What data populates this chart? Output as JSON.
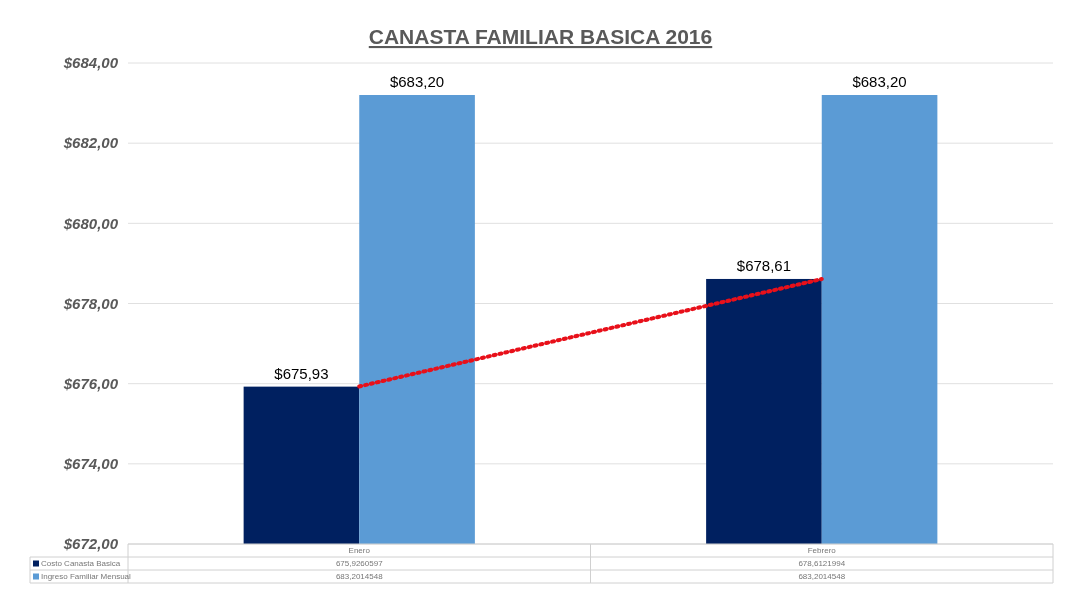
{
  "chart_data": {
    "type": "bar",
    "title": "CANASTA FAMILIAR BASICA 2016",
    "categories": [
      "Enero",
      "Febrero"
    ],
    "series": [
      {
        "name": "Costo Canasta Basica",
        "color": "#002060",
        "values": [
          675.9260597,
          678.6121994
        ],
        "value_labels": [
          "$675,93",
          "$678,61"
        ]
      },
      {
        "name": "Ingreso Familiar Mensual",
        "color": "#5b9bd5",
        "values": [
          683.2014548,
          683.2014548
        ],
        "value_labels": [
          "$683,20",
          "$683,20"
        ]
      },
      {
        "type": "line",
        "color": "#e8101a",
        "values": [
          675.93,
          678.61
        ],
        "line_style": "dotted"
      }
    ],
    "ylim": [
      672,
      684
    ],
    "yticks": [
      {
        "value": 672,
        "label": "$672,00"
      },
      {
        "value": 674,
        "label": "$674,00"
      },
      {
        "value": 676,
        "label": "$676,00"
      },
      {
        "value": 678,
        "label": "$678,00"
      },
      {
        "value": 680,
        "label": "$680,00"
      },
      {
        "value": 682,
        "label": "$682,00"
      },
      {
        "value": 684,
        "label": "$684,00"
      }
    ],
    "annotations": [
      "675,9260597",
      "678,6121994",
      "683,2014548",
      "683,2014548"
    ],
    "grid": "y",
    "legend": "bottom"
  }
}
